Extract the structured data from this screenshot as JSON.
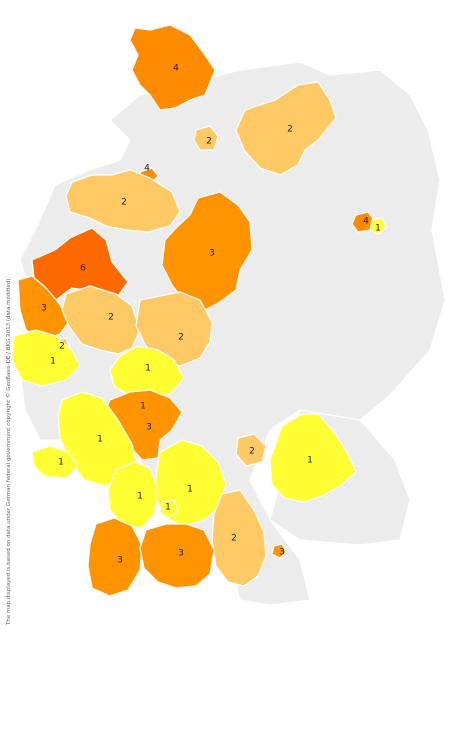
{
  "colors": {
    "background": "#ececec",
    "levels": {
      "1": "#ffff33",
      "2": "#ffc966",
      "3": "#ff9400",
      "4": "#ff8c00",
      "6": "#ff6a00"
    }
  },
  "copyright": "The map displayed is based on data under German federal government copyright © GeoBasis-DE / BKG 2013 (data modified).",
  "regions": [
    {
      "id": "schleswig-holstein",
      "label": "4",
      "level": "4"
    },
    {
      "id": "hamburg-area",
      "label": "2",
      "level": "2"
    },
    {
      "id": "mecklenburg",
      "label": "2",
      "level": "2"
    },
    {
      "id": "bremen-area",
      "label": "4",
      "level": "4"
    },
    {
      "id": "weser-ems",
      "label": "2",
      "level": "2"
    },
    {
      "id": "sachsen-anhalt-niedersachsen",
      "label": "3",
      "level": "3"
    },
    {
      "id": "berlin",
      "label": "4",
      "level": "4"
    },
    {
      "id": "berlin-east",
      "label": "1",
      "level": "1"
    },
    {
      "id": "muenster",
      "label": "6",
      "level": "6"
    },
    {
      "id": "niederrhein",
      "label": "3",
      "level": "3"
    },
    {
      "id": "westfalen",
      "label": "2",
      "level": "2"
    },
    {
      "id": "hessen-nord",
      "label": "2",
      "level": "2"
    },
    {
      "id": "koeln-small",
      "label": "2",
      "level": "2"
    },
    {
      "id": "koeln",
      "label": "1",
      "level": "1"
    },
    {
      "id": "hessen-mitte",
      "label": "1",
      "level": "1"
    },
    {
      "id": "frankfurt-small",
      "label": "1",
      "level": "1"
    },
    {
      "id": "rhein-main",
      "label": "3",
      "level": "3"
    },
    {
      "id": "rheinland-pfalz",
      "label": "1",
      "level": "1"
    },
    {
      "id": "saarland",
      "label": "1",
      "level": "1"
    },
    {
      "id": "nuernberg",
      "label": "2",
      "level": "2"
    },
    {
      "id": "oberpfalz",
      "label": "1",
      "level": "1"
    },
    {
      "id": "stuttgart-west",
      "label": "1",
      "level": "1"
    },
    {
      "id": "stuttgart",
      "label": "1",
      "level": "1"
    },
    {
      "id": "stuttgart-small",
      "label": "1",
      "level": "1"
    },
    {
      "id": "schwaben",
      "label": "2",
      "level": "2"
    },
    {
      "id": "muenchen",
      "label": "3",
      "level": "3"
    },
    {
      "id": "freiburg",
      "label": "3",
      "level": "3"
    },
    {
      "id": "bodensee",
      "label": "3",
      "level": "3"
    }
  ]
}
